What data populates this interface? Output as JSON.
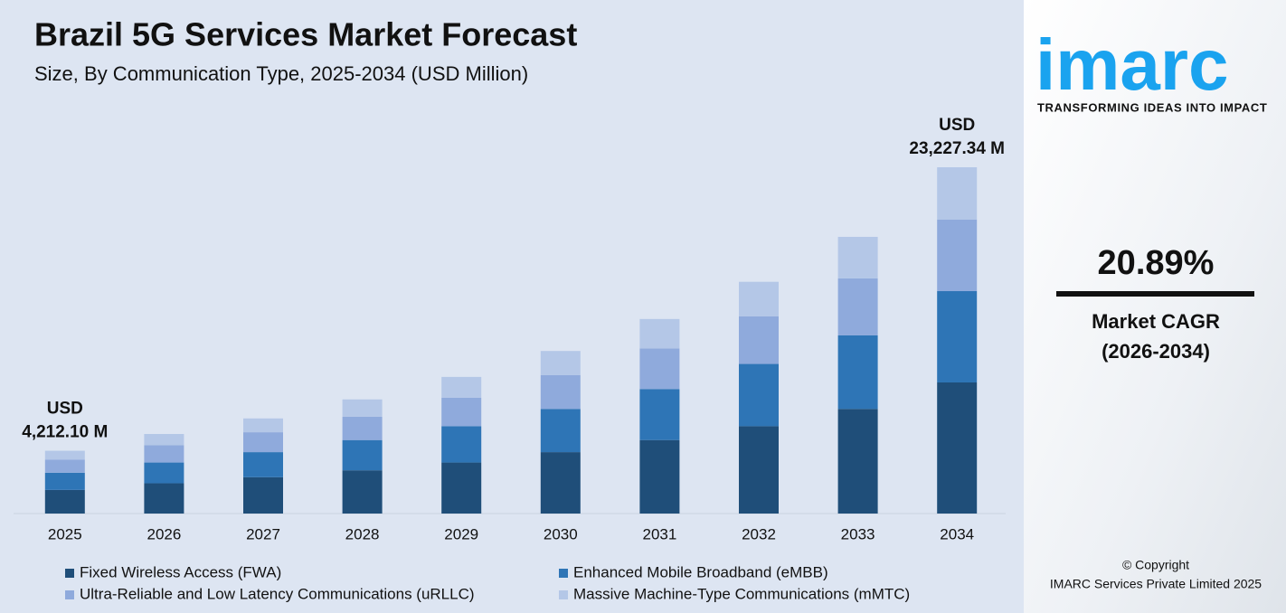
{
  "chart_data": {
    "type": "stacked-bar",
    "title": "Brazil 5G Services Market Forecast",
    "subtitle": "Size, By Communication Type, 2025-2034 (USD Million)",
    "categories": [
      "2025",
      "2026",
      "2027",
      "2028",
      "2029",
      "2030",
      "2031",
      "2032",
      "2033",
      "2034"
    ],
    "series": [
      {
        "name": "Fixed Wireless Access (FWA)",
        "color": "#1f4e79",
        "values": [
          1586,
          2030,
          2436,
          2900,
          3422,
          4118,
          4930,
          5858,
          7018,
          8794
        ]
      },
      {
        "name": "Enhanced Mobile Broadband (eMBB)",
        "color": "#2e75b6",
        "values": [
          1149,
          1392,
          1682,
          2030,
          2436,
          2900,
          3422,
          4176,
          4930,
          6124
        ]
      },
      {
        "name": "Ultra-Reliable and Low Latency Communications (uRLLC)",
        "color": "#8faadc",
        "values": [
          875,
          1160,
          1334,
          1566,
          1914,
          2262,
          2726,
          3190,
          3828,
          4791
        ]
      },
      {
        "name": "Massive Machine-Type Communications (mMTC)",
        "color": "#b4c7e7",
        "values": [
          602,
          754,
          928,
          1160,
          1392,
          1624,
          1972,
          2320,
          2784,
          3518
        ]
      }
    ],
    "annotations": [
      {
        "category": "2025",
        "prefix": "USD",
        "value": 4212.1,
        "value_label": "4,212.10 M"
      },
      {
        "category": "2034",
        "prefix": "USD",
        "value": 23227.34,
        "value_label": "23,227.34 M"
      }
    ]
  },
  "side_panel": {
    "logo": "imarc",
    "tagline": "TRANSFORMING IDEAS INTO IMPACT",
    "cagr": "20.89%",
    "cagr_label": "Market CAGR",
    "cagr_period": "(2026-2034)",
    "copyright": "© Copyright",
    "company": "IMARC Services Private Limited 2025"
  }
}
